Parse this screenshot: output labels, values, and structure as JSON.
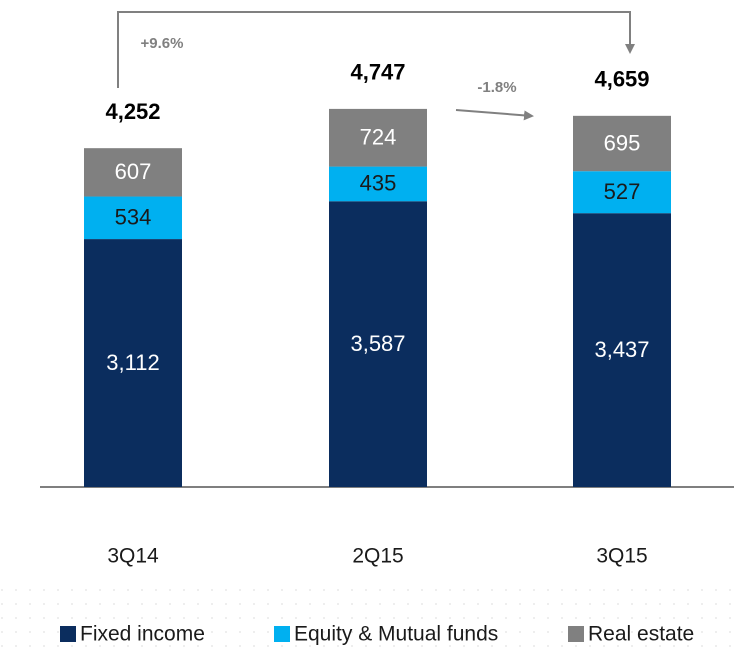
{
  "chart_data": {
    "type": "stacked_bar",
    "categories": [
      "3Q14",
      "2Q15",
      "3Q15"
    ],
    "series": [
      {
        "name": "Fixed income",
        "color": "#0b2d5e",
        "values": [
          3112,
          3587,
          3437
        ],
        "value_labels": [
          "3,112",
          "3,587",
          "3,437"
        ],
        "label_color": "#ffffff"
      },
      {
        "name": "Equity & Mutual funds",
        "color": "#00b0f0",
        "values": [
          534,
          435,
          527
        ],
        "value_labels": [
          "534",
          "435",
          "527"
        ],
        "label_color": "#1a1a1a"
      },
      {
        "name": "Real estate",
        "color": "#808080",
        "values": [
          607,
          724,
          695
        ],
        "value_labels": [
          "607",
          "724",
          "695"
        ],
        "label_color": "#ffffff"
      }
    ],
    "totals": [
      4252,
      4747,
      4659
    ],
    "total_labels": [
      "4,252",
      "4,747",
      "4,659"
    ],
    "annotations": [
      "+9.6%",
      "-1.8%"
    ],
    "ylim": [
      0,
      6000
    ],
    "legend": "bottom"
  }
}
